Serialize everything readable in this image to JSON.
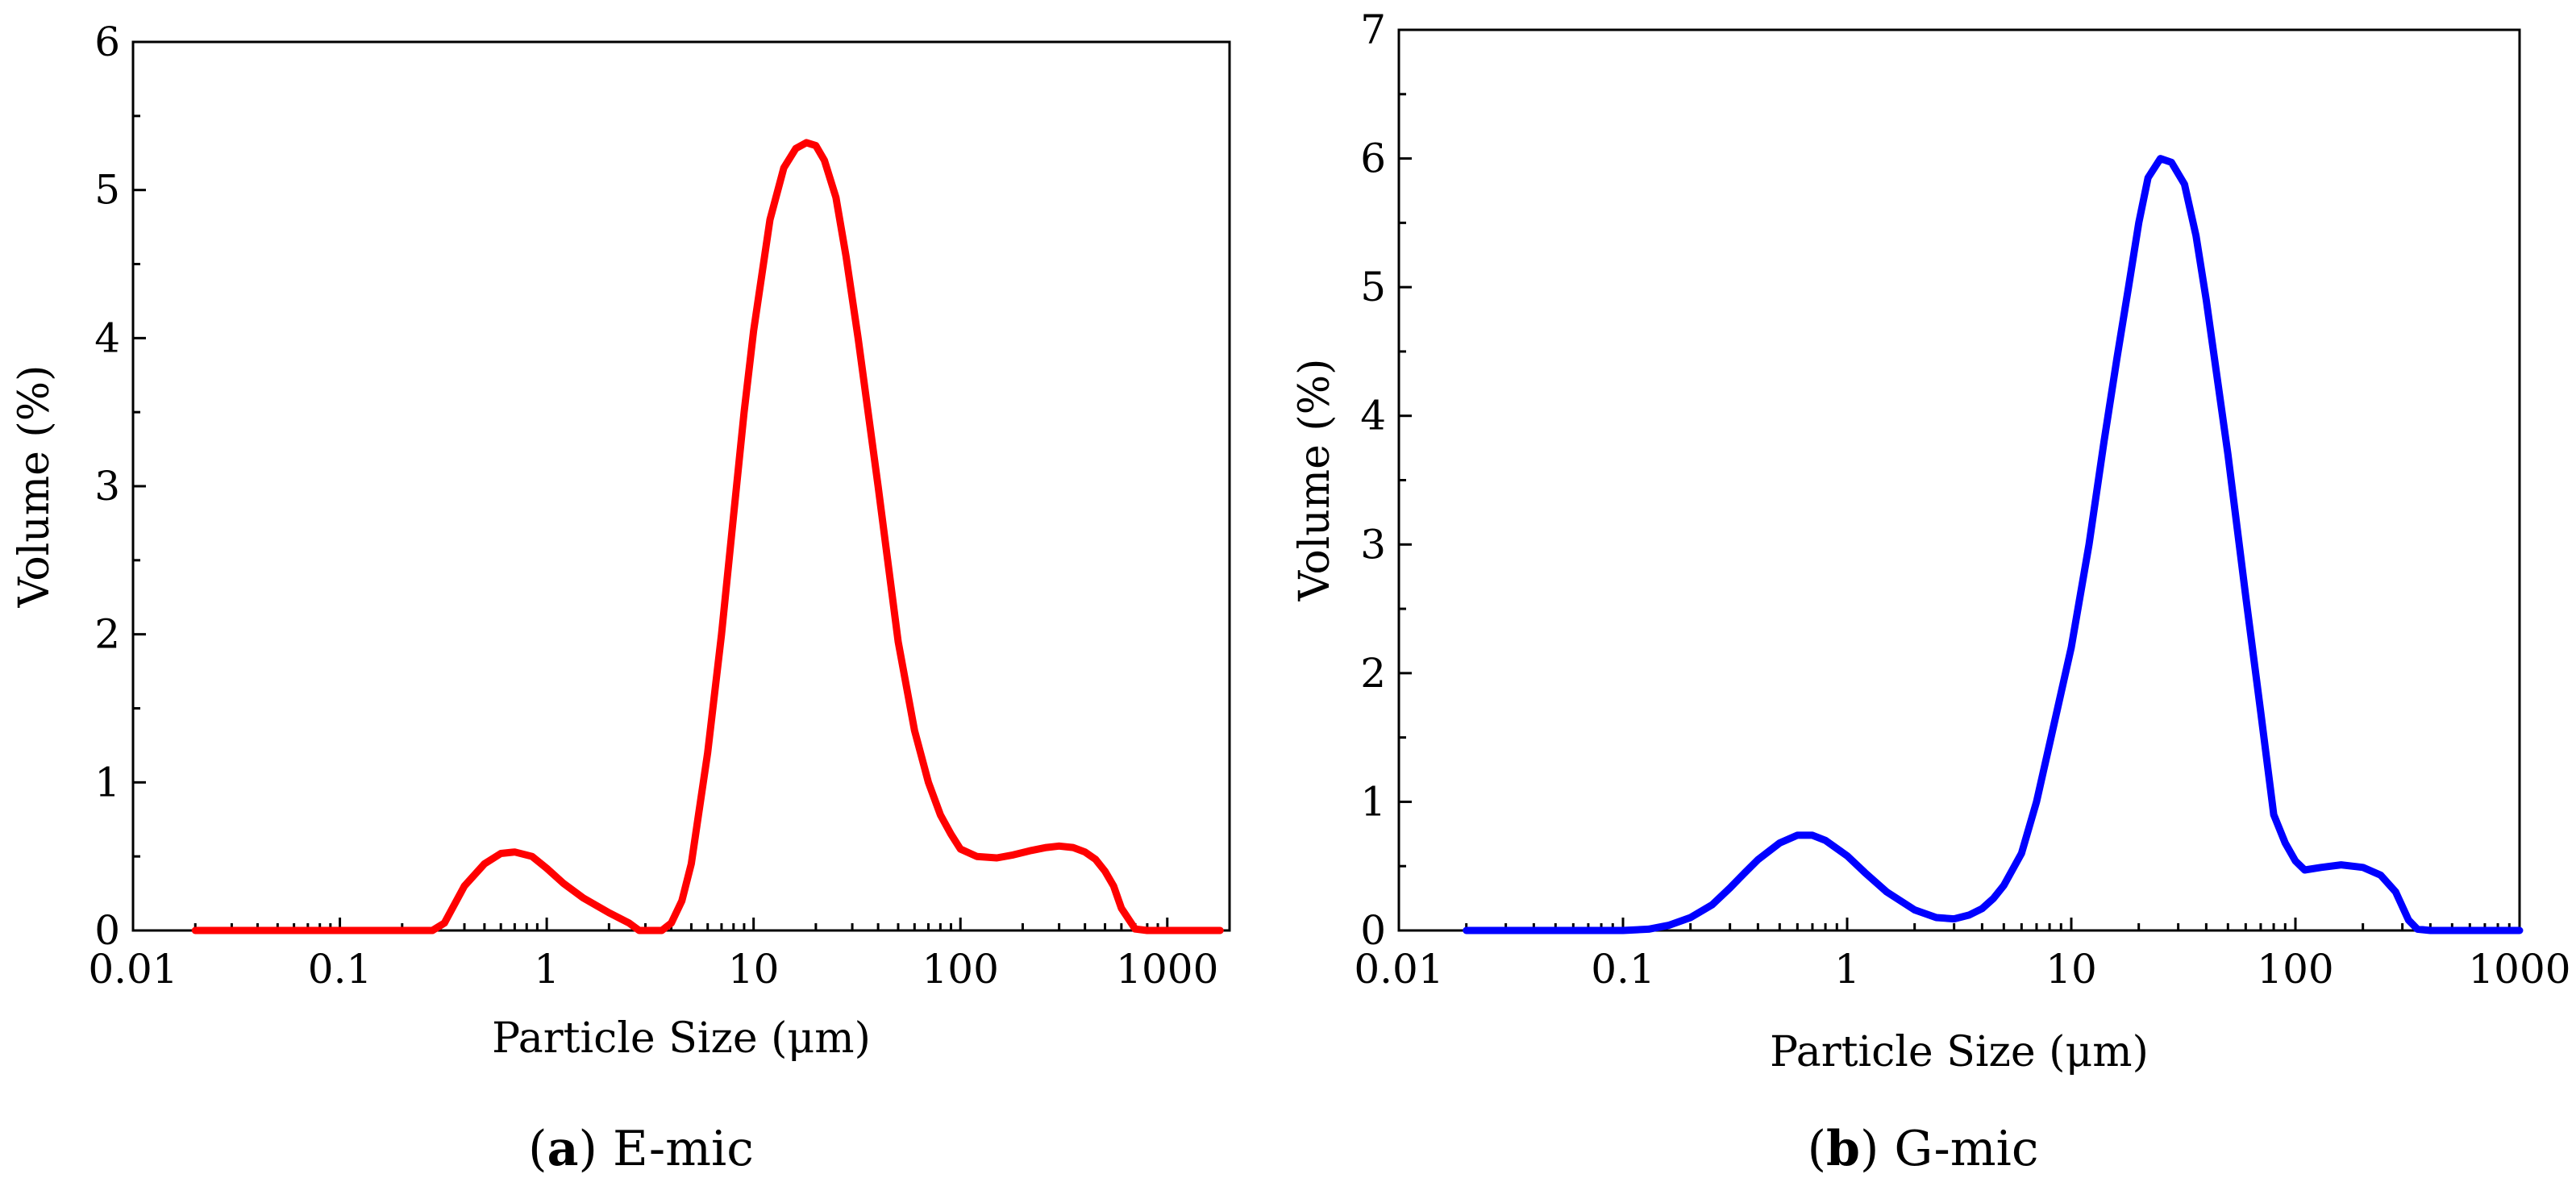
{
  "chart_data": [
    {
      "type": "line",
      "xscale": "log",
      "panel_letter": "a",
      "caption_text": "E-mic",
      "title": "(a) E-mic",
      "xlabel": "Particle Size (μm)",
      "ylabel": "Volume (%)",
      "xlim": [
        0.01,
        2000
      ],
      "ylim": [
        0,
        6
      ],
      "x_ticks": [
        0.01,
        0.1,
        1,
        10,
        100,
        1000
      ],
      "x_tick_labels": [
        "0.01",
        "0.1",
        "1",
        "10",
        "100",
        "1000"
      ],
      "y_ticks": [
        0,
        1,
        2,
        3,
        4,
        5,
        6
      ],
      "y_tick_labels": [
        "0",
        "1",
        "2",
        "3",
        "4",
        "5",
        "6"
      ],
      "series": [
        {
          "name": "E-mic",
          "color": "#ff0000",
          "x": [
            0.02,
            0.1,
            0.2,
            0.28,
            0.32,
            0.4,
            0.5,
            0.6,
            0.7,
            0.85,
            1.0,
            1.2,
            1.5,
            2.0,
            2.5,
            2.8,
            3.2,
            3.6,
            4.0,
            4.5,
            5.0,
            6.0,
            7.0,
            8.0,
            9.0,
            10,
            12,
            14,
            16,
            18,
            20,
            22,
            25,
            28,
            32,
            40,
            50,
            60,
            70,
            80,
            90,
            100,
            120,
            150,
            180,
            220,
            260,
            300,
            350,
            400,
            450,
            500,
            550,
            600,
            700,
            800,
            1000,
            1500,
            1800
          ],
          "y": [
            0,
            0,
            0,
            0,
            0.05,
            0.3,
            0.45,
            0.52,
            0.53,
            0.5,
            0.42,
            0.32,
            0.22,
            0.12,
            0.05,
            0,
            0,
            0,
            0.05,
            0.2,
            0.45,
            1.2,
            2.0,
            2.8,
            3.5,
            4.05,
            4.8,
            5.15,
            5.28,
            5.32,
            5.3,
            5.2,
            4.95,
            4.55,
            4.0,
            3.0,
            1.95,
            1.35,
            1.0,
            0.78,
            0.65,
            0.55,
            0.5,
            0.49,
            0.51,
            0.54,
            0.56,
            0.57,
            0.56,
            0.53,
            0.48,
            0.4,
            0.3,
            0.15,
            0.01,
            0,
            0,
            0,
            0
          ]
        }
      ]
    },
    {
      "type": "line",
      "xscale": "log",
      "panel_letter": "b",
      "caption_text": "G-mic",
      "title": "(b) G-mic",
      "xlabel": "Particle Size (μm)",
      "ylabel": "Volume (%)",
      "xlim": [
        0.01,
        1000
      ],
      "ylim": [
        0,
        7
      ],
      "x_ticks": [
        0.01,
        0.1,
        1,
        10,
        100,
        1000
      ],
      "x_tick_labels": [
        "0.01",
        "0.1",
        "1",
        "10",
        "100",
        "1000"
      ],
      "y_ticks": [
        0,
        1,
        2,
        3,
        4,
        5,
        6,
        7
      ],
      "y_tick_labels": [
        "0",
        "1",
        "2",
        "3",
        "4",
        "5",
        "6",
        "7"
      ],
      "series": [
        {
          "name": "G-mic",
          "color": "#0000ff",
          "x": [
            0.02,
            0.05,
            0.1,
            0.13,
            0.16,
            0.2,
            0.25,
            0.3,
            0.35,
            0.4,
            0.5,
            0.6,
            0.7,
            0.8,
            1.0,
            1.2,
            1.5,
            2.0,
            2.5,
            3.0,
            3.5,
            4.0,
            4.5,
            5.0,
            6.0,
            7.0,
            8.0,
            10,
            12,
            14,
            16,
            18,
            20,
            22,
            25,
            28,
            32,
            36,
            40,
            50,
            60,
            70,
            80,
            90,
            100,
            110,
            130,
            160,
            200,
            240,
            280,
            320,
            350,
            400,
            500,
            700,
            1000
          ],
          "y": [
            0,
            0,
            0,
            0.01,
            0.04,
            0.1,
            0.2,
            0.33,
            0.45,
            0.55,
            0.68,
            0.74,
            0.74,
            0.7,
            0.58,
            0.45,
            0.3,
            0.16,
            0.1,
            0.09,
            0.12,
            0.17,
            0.25,
            0.35,
            0.6,
            1.0,
            1.45,
            2.2,
            3.0,
            3.8,
            4.45,
            5.0,
            5.5,
            5.85,
            6.0,
            5.97,
            5.8,
            5.4,
            4.9,
            3.7,
            2.6,
            1.7,
            0.9,
            0.68,
            0.54,
            0.47,
            0.49,
            0.51,
            0.49,
            0.43,
            0.3,
            0.08,
            0.01,
            0,
            0,
            0,
            0
          ]
        }
      ]
    }
  ]
}
